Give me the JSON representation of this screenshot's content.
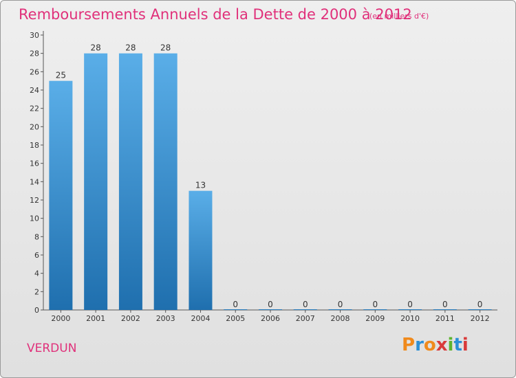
{
  "header": {
    "title": "Remboursements Annuels de la Dette de 2000 à 2012",
    "unit": "(en milliers d'€)"
  },
  "footer": {
    "commune": "VERDUN",
    "logo": "Proxiti"
  },
  "colors": {
    "accent": "#e0307a",
    "bar_light": "#5aaee8",
    "bar_dark": "#1f6fae",
    "logo_letters": [
      "#f08a1c",
      "#2b8fd6",
      "#f08a1c",
      "#d93a3a",
      "#5db42f",
      "#2b8fd6",
      "#d93a3a"
    ]
  },
  "chart_data": {
    "type": "bar",
    "categories": [
      "2000",
      "2001",
      "2002",
      "2003",
      "2004",
      "2005",
      "2006",
      "2007",
      "2008",
      "2009",
      "2010",
      "2011",
      "2012"
    ],
    "values": [
      25,
      28,
      28,
      28,
      13,
      0,
      0,
      0,
      0,
      0,
      0,
      0,
      0
    ],
    "data_labels": [
      "25",
      "28",
      "28",
      "28",
      "13",
      "0",
      "0",
      "0",
      "0",
      "0",
      "0",
      "0",
      "0"
    ],
    "title": "Remboursements Annuels de la Dette de 2000 à 2012",
    "xlabel": "",
    "ylabel": "",
    "ylim": [
      0,
      30
    ],
    "yticks": [
      0,
      2,
      4,
      6,
      8,
      10,
      12,
      14,
      16,
      18,
      20,
      22,
      24,
      26,
      28,
      30
    ],
    "grid": false,
    "legend": "none"
  }
}
